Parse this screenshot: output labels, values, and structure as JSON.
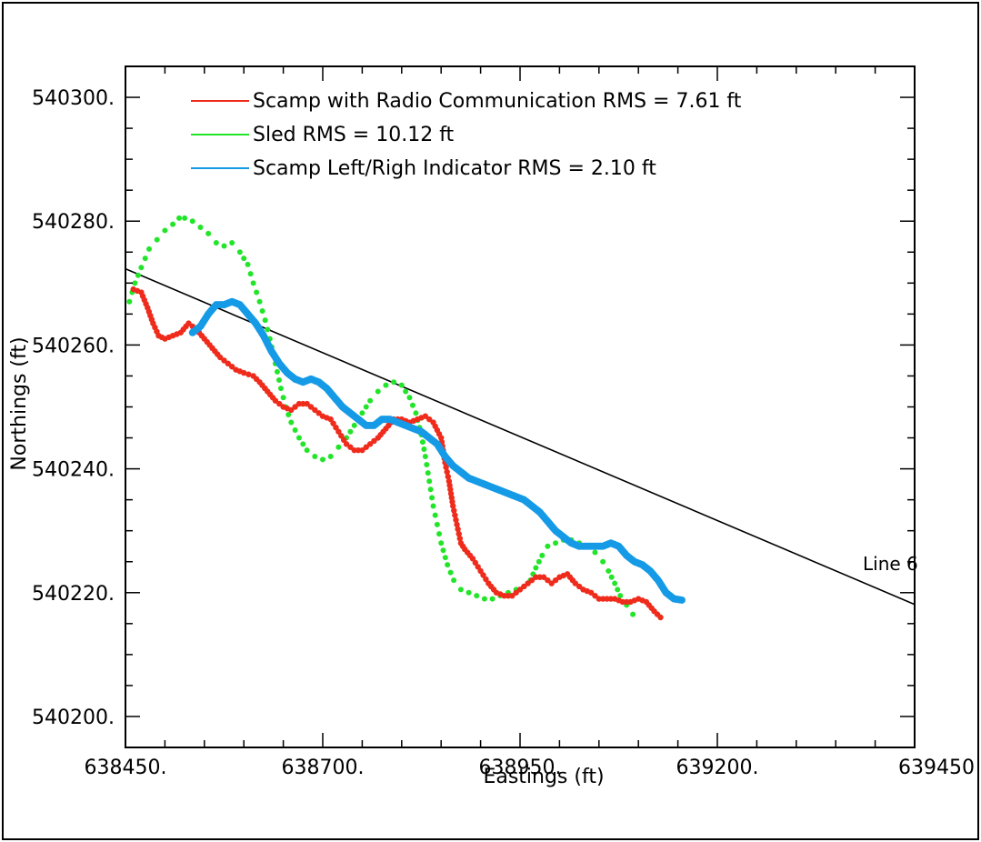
{
  "chart_data": {
    "type": "scatter",
    "xlabel": "Eastings (ft)",
    "ylabel": "Northings (ft)",
    "xlim": [
      638450,
      639450
    ],
    "ylim": [
      540195,
      540305
    ],
    "x_ticks": [
      "638450.",
      "638700.",
      "638950.",
      "639200.",
      "639450"
    ],
    "y_ticks": [
      "540200.",
      "540220.",
      "540240.",
      "540260.",
      "540280.",
      "540300."
    ],
    "grid": false,
    "legend_position": "top-left",
    "annotations": [
      {
        "text": "Line 6",
        "x": 639340,
        "y": 540223
      }
    ],
    "reference_line": {
      "name": "Line 6",
      "color": "#000000",
      "points": [
        [
          638450,
          540272.3
        ],
        [
          639450,
          540218.1
        ]
      ]
    },
    "series": [
      {
        "name": "Scamp with Radio Communication RMS = 7.61 ft",
        "color": "#ef2b1c",
        "points": [
          [
            638460,
            540269
          ],
          [
            638470,
            540268.5
          ],
          [
            638478,
            540266
          ],
          [
            638485,
            540263.5
          ],
          [
            638492,
            540261.5
          ],
          [
            638500,
            540261
          ],
          [
            638510,
            540261.5
          ],
          [
            638520,
            540262
          ],
          [
            638530,
            540263.5
          ],
          [
            638540,
            540262.5
          ],
          [
            638550,
            540261
          ],
          [
            638560,
            540259.5
          ],
          [
            638570,
            540258
          ],
          [
            638580,
            540257
          ],
          [
            638590,
            540256
          ],
          [
            638600,
            540255.5
          ],
          [
            638612,
            540255
          ],
          [
            638620,
            540254
          ],
          [
            638630,
            540252.5
          ],
          [
            638640,
            540251
          ],
          [
            638650,
            540250
          ],
          [
            638660,
            540249.5
          ],
          [
            638670,
            540250.5
          ],
          [
            638680,
            540250.5
          ],
          [
            638690,
            540249.5
          ],
          [
            638700,
            540248.5
          ],
          [
            638710,
            540248
          ],
          [
            638720,
            540246
          ],
          [
            638730,
            540244
          ],
          [
            638740,
            540243
          ],
          [
            638750,
            540243
          ],
          [
            638760,
            540244
          ],
          [
            638770,
            540245
          ],
          [
            638780,
            540246.5
          ],
          [
            638790,
            540248
          ],
          [
            638800,
            540248
          ],
          [
            638810,
            540247.5
          ],
          [
            638820,
            540248
          ],
          [
            638830,
            540248.5
          ],
          [
            638840,
            540247.5
          ],
          [
            638850,
            540245
          ],
          [
            638855,
            540241
          ],
          [
            638860,
            540238
          ],
          [
            638865,
            540234
          ],
          [
            638870,
            540231
          ],
          [
            638875,
            540228
          ],
          [
            638880,
            540227
          ],
          [
            638890,
            540225.5
          ],
          [
            638900,
            540223.5
          ],
          [
            638910,
            540221.5
          ],
          [
            638920,
            540220
          ],
          [
            638930,
            540219.5
          ],
          [
            638940,
            540219.5
          ],
          [
            638950,
            540220.5
          ],
          [
            638960,
            540221.5
          ],
          [
            638970,
            540222.5
          ],
          [
            638980,
            540222.5
          ],
          [
            638990,
            540221.5
          ],
          [
            639000,
            540222.5
          ],
          [
            639010,
            540223
          ],
          [
            639020,
            540221.5
          ],
          [
            639030,
            540220.5
          ],
          [
            639040,
            540220
          ],
          [
            639050,
            540219
          ],
          [
            639060,
            540219
          ],
          [
            639070,
            540219
          ],
          [
            639080,
            540218.5
          ],
          [
            639090,
            540218.5
          ],
          [
            639100,
            540219
          ],
          [
            639110,
            540218.5
          ],
          [
            639120,
            540217
          ],
          [
            639128,
            540216
          ]
        ]
      },
      {
        "name": "Sled RMS = 10.12 ft",
        "color": "#22e52a",
        "points": [
          [
            638455,
            540267
          ],
          [
            638462,
            540270
          ],
          [
            638470,
            540272.5
          ],
          [
            638480,
            540275.5
          ],
          [
            638490,
            540277
          ],
          [
            638500,
            540278.5
          ],
          [
            638510,
            540279.5
          ],
          [
            638518,
            540280.5
          ],
          [
            638525,
            540280.5
          ],
          [
            638535,
            540280
          ],
          [
            638545,
            540279
          ],
          [
            638555,
            540278
          ],
          [
            638565,
            540276.5
          ],
          [
            638575,
            540276
          ],
          [
            638585,
            540276.5
          ],
          [
            638595,
            540275
          ],
          [
            638605,
            540273
          ],
          [
            638612,
            540270
          ],
          [
            638620,
            540267
          ],
          [
            638627,
            540264
          ],
          [
            638633,
            540261
          ],
          [
            638640,
            540257
          ],
          [
            638647,
            540253
          ],
          [
            638653,
            540250
          ],
          [
            638660,
            540247.5
          ],
          [
            638670,
            540245
          ],
          [
            638680,
            540243
          ],
          [
            638690,
            540242
          ],
          [
            638700,
            540241.5
          ],
          [
            638710,
            540242
          ],
          [
            638720,
            540243.5
          ],
          [
            638730,
            540245
          ],
          [
            638740,
            540247
          ],
          [
            638750,
            540249
          ],
          [
            638760,
            540251
          ],
          [
            638770,
            540252.5
          ],
          [
            638780,
            540253.5
          ],
          [
            638790,
            540254
          ],
          [
            638800,
            540253.5
          ],
          [
            638810,
            540251.5
          ],
          [
            638818,
            540249
          ],
          [
            638825,
            540245.5
          ],
          [
            638830,
            540242
          ],
          [
            638835,
            540238
          ],
          [
            638840,
            540234
          ],
          [
            638845,
            540231
          ],
          [
            638850,
            540228
          ],
          [
            638858,
            540224.5
          ],
          [
            638866,
            540222
          ],
          [
            638875,
            540220.5
          ],
          [
            638885,
            540220
          ],
          [
            638895,
            540219.5
          ],
          [
            638905,
            540219
          ],
          [
            638915,
            540219
          ],
          [
            638925,
            540219.5
          ],
          [
            638935,
            540220
          ],
          [
            638945,
            540220.5
          ],
          [
            638955,
            540221
          ],
          [
            638963,
            540222
          ],
          [
            638970,
            540224
          ],
          [
            638978,
            540226
          ],
          [
            638985,
            540227.5
          ],
          [
            638995,
            540228
          ],
          [
            639005,
            540228.5
          ],
          [
            639015,
            540228.5
          ],
          [
            639025,
            540228
          ],
          [
            639035,
            540227.5
          ],
          [
            639045,
            540226.5
          ],
          [
            639055,
            540225
          ],
          [
            639062,
            540223.5
          ],
          [
            639070,
            540221.5
          ],
          [
            639077,
            540219.5
          ],
          [
            639085,
            540218
          ],
          [
            639093,
            540216.5
          ]
        ]
      },
      {
        "name": "Scamp Left/Righ Indicator RMS = 2.10 ft",
        "color": "#159ae6",
        "points": [
          [
            638535,
            540262
          ],
          [
            638545,
            540263
          ],
          [
            638555,
            540265
          ],
          [
            638565,
            540266.5
          ],
          [
            638575,
            540266.5
          ],
          [
            638585,
            540267
          ],
          [
            638595,
            540266.5
          ],
          [
            638605,
            540265
          ],
          [
            638615,
            540263.5
          ],
          [
            638625,
            540261.5
          ],
          [
            638635,
            540259
          ],
          [
            638645,
            540257
          ],
          [
            638655,
            540255.5
          ],
          [
            638665,
            540254.5
          ],
          [
            638675,
            540254
          ],
          [
            638685,
            540254.5
          ],
          [
            638695,
            540254
          ],
          [
            638705,
            540253
          ],
          [
            638715,
            540251.5
          ],
          [
            638725,
            540250
          ],
          [
            638735,
            540249
          ],
          [
            638745,
            540248
          ],
          [
            638755,
            540247
          ],
          [
            638765,
            540247
          ],
          [
            638775,
            540248
          ],
          [
            638785,
            540248
          ],
          [
            638795,
            540247.5
          ],
          [
            638805,
            540247
          ],
          [
            638815,
            540246.5
          ],
          [
            638825,
            540246
          ],
          [
            638835,
            540245
          ],
          [
            638845,
            540244
          ],
          [
            638855,
            540242
          ],
          [
            638865,
            540240.5
          ],
          [
            638875,
            540239.5
          ],
          [
            638885,
            540238.5
          ],
          [
            638895,
            540238
          ],
          [
            638905,
            540237.5
          ],
          [
            638915,
            540237
          ],
          [
            638925,
            540236.5
          ],
          [
            638935,
            540236
          ],
          [
            638945,
            540235.5
          ],
          [
            638955,
            540235
          ],
          [
            638965,
            540234
          ],
          [
            638975,
            540233
          ],
          [
            638985,
            540231.5
          ],
          [
            638995,
            540230
          ],
          [
            639005,
            540229
          ],
          [
            639015,
            540228
          ],
          [
            639025,
            540227.5
          ],
          [
            639035,
            540227.5
          ],
          [
            639045,
            540227.5
          ],
          [
            639055,
            540227.5
          ],
          [
            639065,
            540228
          ],
          [
            639075,
            540227.5
          ],
          [
            639085,
            540226
          ],
          [
            639095,
            540225
          ],
          [
            639105,
            540224.5
          ],
          [
            639115,
            540223.5
          ],
          [
            639125,
            540222
          ],
          [
            639135,
            540220
          ],
          [
            639145,
            540219
          ],
          [
            639155,
            540218.8
          ]
        ]
      }
    ]
  }
}
